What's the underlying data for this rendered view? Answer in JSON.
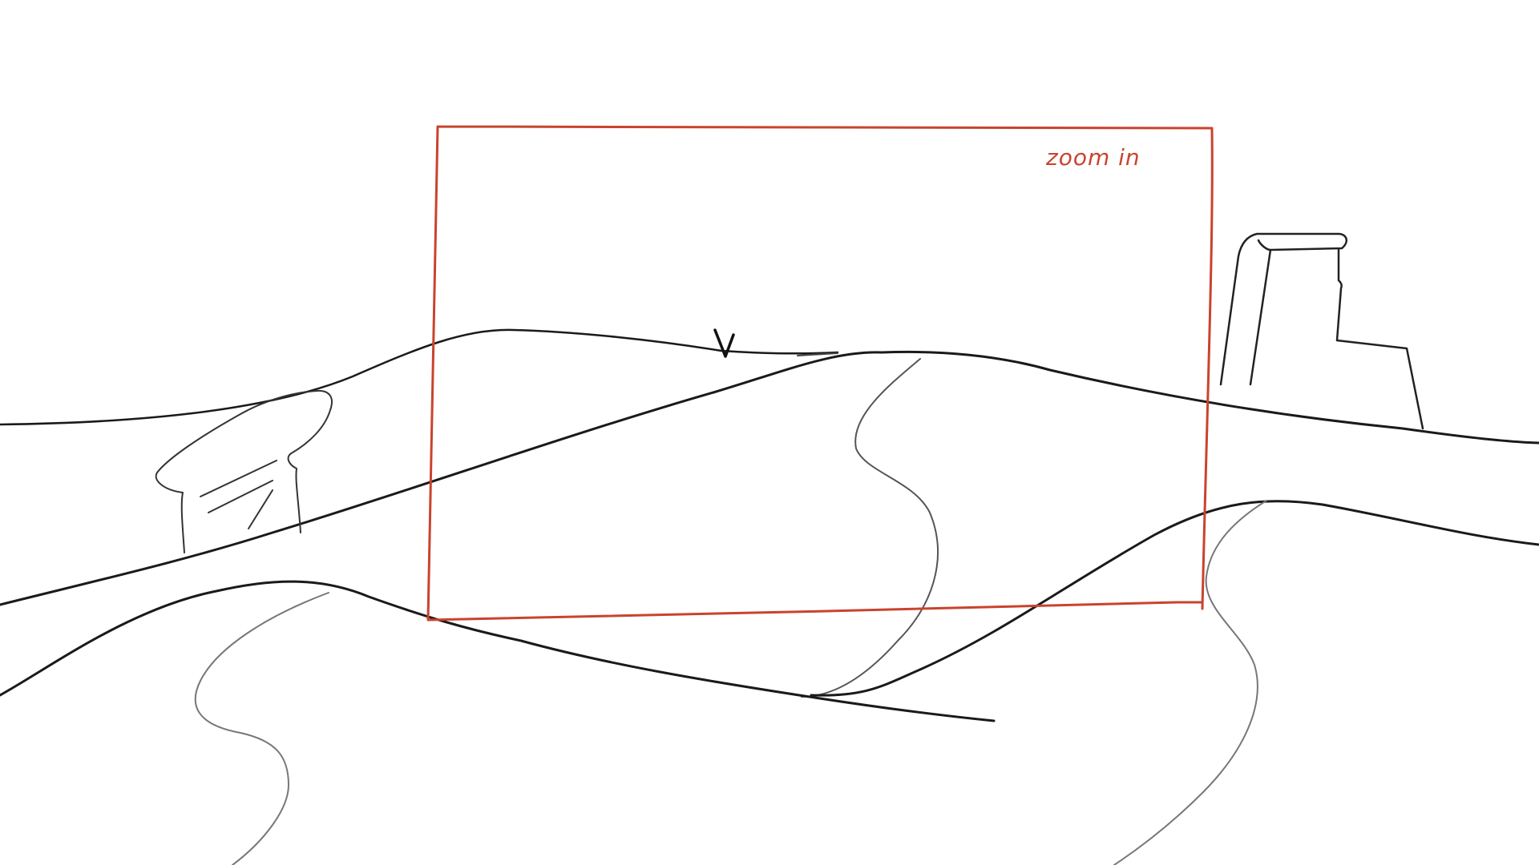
{
  "annotation": {
    "label": "zoom in"
  },
  "colors": {
    "ink": "#1a1a1a",
    "faint_ink": "#8a8a8a",
    "annotation": "#c9432e",
    "background": "#ffffff"
  },
  "icons": {
    "bird": "bird-icon",
    "rock": "rock-formation",
    "ruin": "ruin-structure"
  }
}
